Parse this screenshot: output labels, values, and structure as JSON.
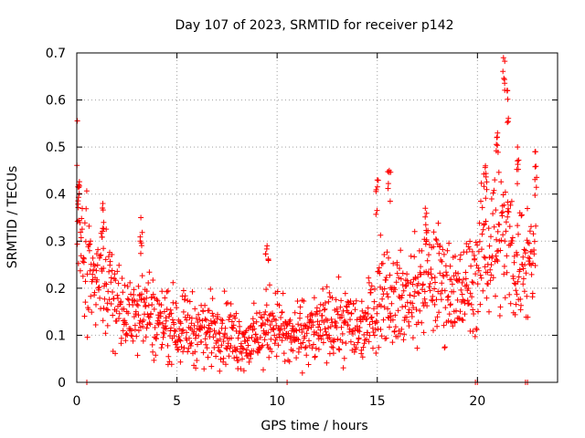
{
  "chart_data": {
    "type": "scatter",
    "title": "Day 107 of 2023, SRMTID for receiver p142",
    "xlabel": "GPS time / hours",
    "ylabel": "SRMTID / TECUs",
    "xlim": [
      0,
      24
    ],
    "ylim": [
      0,
      0.7
    ],
    "x_ticks": [
      0,
      5,
      10,
      15,
      20
    ],
    "y_ticks": [
      0,
      0.1,
      0.2,
      0.3,
      0.4,
      0.5,
      0.6,
      0.7
    ],
    "grid": true,
    "marker": "plus",
    "color": "#ff0000",
    "trend": [
      [
        0.0,
        0.36
      ],
      [
        0.5,
        0.25
      ],
      [
        1.0,
        0.2
      ],
      [
        1.5,
        0.22
      ],
      [
        2.0,
        0.18
      ],
      [
        2.5,
        0.13
      ],
      [
        3.0,
        0.17
      ],
      [
        3.5,
        0.16
      ],
      [
        4.0,
        0.13
      ],
      [
        4.5,
        0.13
      ],
      [
        5.0,
        0.12
      ],
      [
        5.5,
        0.12
      ],
      [
        6.0,
        0.11
      ],
      [
        6.5,
        0.11
      ],
      [
        7.0,
        0.12
      ],
      [
        7.5,
        0.11
      ],
      [
        8.0,
        0.09
      ],
      [
        8.5,
        0.09
      ],
      [
        9.0,
        0.09
      ],
      [
        9.5,
        0.12
      ],
      [
        10.0,
        0.13
      ],
      [
        10.5,
        0.09
      ],
      [
        11.0,
        0.1
      ],
      [
        11.5,
        0.11
      ],
      [
        12.0,
        0.11
      ],
      [
        12.5,
        0.12
      ],
      [
        13.0,
        0.12
      ],
      [
        13.5,
        0.13
      ],
      [
        14.0,
        0.11
      ],
      [
        14.5,
        0.13
      ],
      [
        15.0,
        0.18
      ],
      [
        15.5,
        0.2
      ],
      [
        16.0,
        0.18
      ],
      [
        16.5,
        0.17
      ],
      [
        17.0,
        0.19
      ],
      [
        17.5,
        0.22
      ],
      [
        18.0,
        0.22
      ],
      [
        18.5,
        0.21
      ],
      [
        19.0,
        0.18
      ],
      [
        19.5,
        0.2
      ],
      [
        20.0,
        0.24
      ],
      [
        20.5,
        0.3
      ],
      [
        21.0,
        0.32
      ],
      [
        21.5,
        0.3
      ],
      [
        22.0,
        0.25
      ],
      [
        22.5,
        0.26
      ],
      [
        23.0,
        0.3
      ]
    ],
    "peaks": [
      [
        0.1,
        0.42
      ],
      [
        1.3,
        0.38
      ],
      [
        3.2,
        0.35
      ],
      [
        9.5,
        0.29
      ],
      [
        15.0,
        0.43
      ],
      [
        15.6,
        0.45
      ],
      [
        17.4,
        0.37
      ],
      [
        20.4,
        0.46
      ],
      [
        21.0,
        0.53
      ],
      [
        21.3,
        0.69
      ],
      [
        21.5,
        0.62
      ],
      [
        22.0,
        0.5
      ],
      [
        22.9,
        0.49
      ]
    ],
    "zeros": [
      0.5,
      10.5,
      19.9,
      20.0,
      22.4,
      22.5
    ]
  }
}
